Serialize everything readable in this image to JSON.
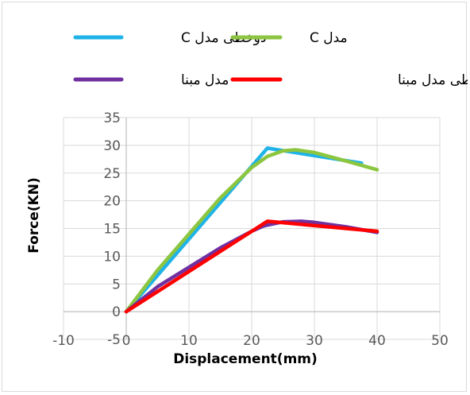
{
  "chart_data": {
    "type": "line",
    "xlabel": "Displacement(mm)",
    "ylabel": "Force(KN)",
    "xlim": [
      -10,
      50
    ],
    "ylim": [
      -5,
      35
    ],
    "x_ticks": [
      -10,
      0,
      10,
      20,
      30,
      40,
      50
    ],
    "y_ticks": [
      -5,
      0,
      5,
      10,
      15,
      20,
      25,
      30,
      35
    ],
    "grid": true,
    "legend_position": "top",
    "series": [
      {
        "name": "دوخطی مدل C",
        "color": "#1fb3e8",
        "x": [
          0,
          22.5,
          37.5
        ],
        "y": [
          0,
          29.5,
          26.8
        ]
      },
      {
        "name": "مدل C",
        "color": "#8cc640",
        "x": [
          0,
          5,
          10,
          15,
          20,
          22.5,
          25,
          27,
          30,
          35,
          40
        ],
        "y": [
          0,
          7.5,
          14,
          20.5,
          26,
          28,
          29,
          29.2,
          28.7,
          27.2,
          25.6
        ]
      },
      {
        "name": "مدل مبنا",
        "color": "#7030a0",
        "x": [
          0,
          5,
          10,
          15,
          20,
          22,
          25,
          28,
          30,
          35,
          40
        ],
        "y": [
          0,
          4.5,
          8,
          11.5,
          14.5,
          15.5,
          16.2,
          16.3,
          16.1,
          15.3,
          14.3
        ]
      },
      {
        "name": "دو خطی مدل مبنا",
        "color": "#ff0000",
        "x": [
          0,
          22.5,
          40
        ],
        "y": [
          0,
          16.3,
          14.5
        ]
      }
    ]
  }
}
